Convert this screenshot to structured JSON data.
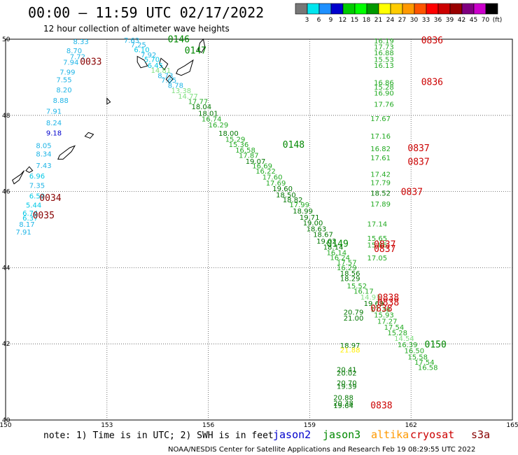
{
  "title": "00:00 – 11:59 UTC 02/17/2022",
  "subtitle": "12 hour collection of altimeter wave heights",
  "note": "note:  1) Time is in UTC;  2) SWH is in feet",
  "footer": "NOAA/NESDIS Center for Satellite Applications and Research   Feb 19 08:29:55 UTC 2022",
  "satellites": [
    {
      "name": "jason2",
      "color": "#0000cc"
    },
    {
      "name": "jason3",
      "color": "#008800"
    },
    {
      "name": "altika",
      "color": "#ff9900"
    },
    {
      "name": "cryosat",
      "color": "#cc0000"
    },
    {
      "name": "s3a",
      "color": "#880000"
    }
  ],
  "colorbar": {
    "labels": [
      "3",
      "6",
      "9",
      "12",
      "15",
      "18",
      "21",
      "24",
      "27",
      "30",
      "33",
      "36",
      "39",
      "42",
      "45",
      "70",
      "(ft)"
    ],
    "colors": [
      "#777777",
      "#00e5ee",
      "#1e90ff",
      "#0000cd",
      "#00cc00",
      "#00ff00",
      "#009900",
      "#ffff00",
      "#ffcc00",
      "#ff9900",
      "#ff5500",
      "#ff0000",
      "#cc0000",
      "#990000",
      "#800080",
      "#cc00cc",
      "#000000"
    ]
  },
  "chart_data": {
    "type": "scatter",
    "title": "00:00 – 11:59 UTC 02/17/2022",
    "xlim": [
      150,
      165
    ],
    "ylim": [
      40,
      50
    ],
    "x_ticks": [
      "150",
      "153",
      "156",
      "159",
      "162",
      "165"
    ],
    "y_ticks": [
      "50",
      "48",
      "46",
      "44",
      "42",
      "40"
    ],
    "grid": true,
    "coast": [
      [
        [
          153.9,
          49.55
        ],
        [
          154.1,
          49.45
        ],
        [
          154.2,
          49.3
        ],
        [
          154.0,
          49.25
        ],
        [
          153.9,
          49.4
        ]
      ],
      [
        [
          154.6,
          49.5
        ],
        [
          154.8,
          49.35
        ],
        [
          154.7,
          49.2
        ],
        [
          154.55,
          49.35
        ]
      ],
      [
        [
          155.1,
          49.2
        ],
        [
          155.3,
          49.3
        ],
        [
          155.55,
          49.45
        ],
        [
          155.45,
          49.15
        ],
        [
          155.2,
          49.05
        ],
        [
          155.05,
          49.1
        ]
      ],
      [
        [
          155.85,
          50.0
        ],
        [
          155.9,
          49.8
        ],
        [
          155.8,
          49.65
        ],
        [
          155.7,
          49.7
        ],
        [
          155.75,
          49.9
        ]
      ],
      [
        [
          154.85,
          49.05
        ],
        [
          154.95,
          48.95
        ],
        [
          154.85,
          48.85
        ],
        [
          154.75,
          48.95
        ]
      ],
      [
        [
          153.0,
          48.45
        ],
        [
          153.1,
          48.35
        ],
        [
          153.0,
          48.3
        ]
      ],
      [
        [
          152.45,
          47.55
        ],
        [
          152.6,
          47.5
        ],
        [
          152.5,
          47.4
        ],
        [
          152.35,
          47.45
        ]
      ],
      [
        [
          151.6,
          46.95
        ],
        [
          151.9,
          47.15
        ],
        [
          152.05,
          47.2
        ],
        [
          151.95,
          47.05
        ],
        [
          151.7,
          46.85
        ],
        [
          151.55,
          46.85
        ]
      ],
      [
        [
          150.7,
          46.65
        ],
        [
          150.8,
          46.55
        ],
        [
          150.7,
          46.5
        ],
        [
          150.6,
          46.55
        ]
      ],
      [
        [
          150.2,
          46.3
        ],
        [
          150.45,
          46.45
        ],
        [
          150.55,
          46.55
        ],
        [
          150.4,
          46.3
        ],
        [
          150.25,
          46.2
        ]
      ]
    ],
    "track_labels": [
      {
        "label": "0146",
        "lon": 154.8,
        "lat": 49.92,
        "color": "#008800"
      },
      {
        "label": "0147",
        "lon": 155.3,
        "lat": 49.62,
        "color": "#008800"
      },
      {
        "label": "0148",
        "lon": 158.2,
        "lat": 47.15,
        "color": "#008800"
      },
      {
        "label": "0149",
        "lon": 159.5,
        "lat": 44.55,
        "color": "#008800"
      },
      {
        "label": "0150",
        "lon": 162.4,
        "lat": 41.9,
        "color": "#008800"
      },
      {
        "label": "0033",
        "lon": 152.2,
        "lat": 49.33,
        "color": "#880000"
      },
      {
        "label": "0034",
        "lon": 151.0,
        "lat": 45.75,
        "color": "#880000"
      },
      {
        "label": "0035",
        "lon": 150.8,
        "lat": 45.29,
        "color": "#880000"
      },
      {
        "label": "0836",
        "lon": 162.3,
        "lat": 49.89,
        "color": "#cc0000"
      },
      {
        "label": "0836",
        "lon": 162.3,
        "lat": 48.8,
        "color": "#cc0000"
      },
      {
        "label": "0837",
        "lon": 161.9,
        "lat": 47.06,
        "color": "#cc0000"
      },
      {
        "label": "0837",
        "lon": 161.9,
        "lat": 46.7,
        "color": "#cc0000"
      },
      {
        "label": "0837",
        "lon": 161.7,
        "lat": 45.91,
        "color": "#cc0000"
      },
      {
        "label": "0837",
        "lon": 160.9,
        "lat": 44.53,
        "color": "#cc0000"
      },
      {
        "label": "0837",
        "lon": 160.9,
        "lat": 44.41,
        "color": "#cc0000"
      },
      {
        "label": "0838",
        "lon": 161.0,
        "lat": 43.13,
        "color": "#cc0000"
      },
      {
        "label": "0838",
        "lon": 161.0,
        "lat": 43.01,
        "color": "#cc0000"
      },
      {
        "label": "0838",
        "lon": 160.8,
        "lat": 42.85,
        "color": "#cc0000"
      },
      {
        "label": "0838",
        "lon": 160.8,
        "lat": 40.3,
        "color": "#cc0000"
      }
    ],
    "points": [
      {
        "lon": 153.5,
        "lat": 49.91,
        "v": "7.63",
        "c": "#1eb4e6"
      },
      {
        "lon": 153.7,
        "lat": 49.79,
        "v": "7.25",
        "c": "#1eb4e6"
      },
      {
        "lon": 153.8,
        "lat": 49.66,
        "v": "6.10",
        "c": "#00c8e6"
      },
      {
        "lon": 154.0,
        "lat": 49.52,
        "v": "7.92",
        "c": "#1eb4e6"
      },
      {
        "lon": 154.1,
        "lat": 49.4,
        "v": "5.70",
        "c": "#00c8e6"
      },
      {
        "lon": 154.2,
        "lat": 49.25,
        "v": "6.45",
        "c": "#00c8e6"
      },
      {
        "lon": 154.3,
        "lat": 49.12,
        "v": "14.81",
        "c": "#80e080"
      },
      {
        "lon": 154.5,
        "lat": 48.98,
        "v": "8.73",
        "c": "#1eb4e6"
      },
      {
        "lon": 154.6,
        "lat": 48.86,
        "v": "7.65",
        "c": "#1eb4e6"
      },
      {
        "lon": 154.8,
        "lat": 48.72,
        "v": "8.78",
        "c": "#1eb4e6"
      },
      {
        "lon": 154.9,
        "lat": 48.58,
        "v": "13.38",
        "c": "#80e080"
      },
      {
        "lon": 155.1,
        "lat": 48.44,
        "v": "14.77",
        "c": "#80e080"
      },
      {
        "lon": 155.4,
        "lat": 48.3,
        "v": "17.77",
        "c": "#22aa22"
      },
      {
        "lon": 155.5,
        "lat": 48.16,
        "v": "18.04",
        "c": "#007700"
      },
      {
        "lon": 155.7,
        "lat": 47.99,
        "v": "18.01",
        "c": "#007700"
      },
      {
        "lon": 155.8,
        "lat": 47.84,
        "v": "16.74",
        "c": "#22aa22"
      },
      {
        "lon": 156.0,
        "lat": 47.68,
        "v": "16.29",
        "c": "#22aa22"
      },
      {
        "lon": 156.3,
        "lat": 47.46,
        "v": "18.00",
        "c": "#007700"
      },
      {
        "lon": 156.5,
        "lat": 47.31,
        "v": "15.29",
        "c": "#22aa22"
      },
      {
        "lon": 156.6,
        "lat": 47.17,
        "v": "15.36",
        "c": "#22aa22"
      },
      {
        "lon": 156.8,
        "lat": 47.02,
        "v": "16.58",
        "c": "#22aa22"
      },
      {
        "lon": 156.9,
        "lat": 46.88,
        "v": "17.87",
        "c": "#22aa22"
      },
      {
        "lon": 157.1,
        "lat": 46.73,
        "v": "19.07",
        "c": "#007700"
      },
      {
        "lon": 157.3,
        "lat": 46.61,
        "v": "16.69",
        "c": "#22aa22"
      },
      {
        "lon": 157.4,
        "lat": 46.47,
        "v": "16.22",
        "c": "#22aa22"
      },
      {
        "lon": 157.6,
        "lat": 46.31,
        "v": "17.60",
        "c": "#22aa22"
      },
      {
        "lon": 157.7,
        "lat": 46.16,
        "v": "17.69",
        "c": "#22aa22"
      },
      {
        "lon": 157.9,
        "lat": 46.01,
        "v": "19.60",
        "c": "#007700"
      },
      {
        "lon": 158.0,
        "lat": 45.85,
        "v": "18.50",
        "c": "#007700"
      },
      {
        "lon": 158.2,
        "lat": 45.72,
        "v": "18.82",
        "c": "#007700"
      },
      {
        "lon": 158.4,
        "lat": 45.59,
        "v": "17.99",
        "c": "#22aa22"
      },
      {
        "lon": 158.5,
        "lat": 45.42,
        "v": "18.99",
        "c": "#007700"
      },
      {
        "lon": 158.7,
        "lat": 45.26,
        "v": "19.71",
        "c": "#007700"
      },
      {
        "lon": 158.8,
        "lat": 45.11,
        "v": "19.00",
        "c": "#007700"
      },
      {
        "lon": 158.9,
        "lat": 44.95,
        "v": "18.63",
        "c": "#007700"
      },
      {
        "lon": 159.1,
        "lat": 44.81,
        "v": "18.67",
        "c": "#007700"
      },
      {
        "lon": 159.2,
        "lat": 44.63,
        "v": "19.02",
        "c": "#007700"
      },
      {
        "lon": 159.4,
        "lat": 44.48,
        "v": "18.14",
        "c": "#007700"
      },
      {
        "lon": 159.5,
        "lat": 44.33,
        "v": "16.14",
        "c": "#22aa22"
      },
      {
        "lon": 159.6,
        "lat": 44.2,
        "v": "16.24",
        "c": "#22aa22"
      },
      {
        "lon": 159.8,
        "lat": 44.07,
        "v": "17.57",
        "c": "#22aa22"
      },
      {
        "lon": 159.8,
        "lat": 43.93,
        "v": "16.29",
        "c": "#22aa22"
      },
      {
        "lon": 159.9,
        "lat": 43.79,
        "v": "18.56",
        "c": "#007700"
      },
      {
        "lon": 159.9,
        "lat": 43.65,
        "v": "18.29",
        "c": "#007700"
      },
      {
        "lon": 160.1,
        "lat": 43.46,
        "v": "15.52",
        "c": "#22aa22"
      },
      {
        "lon": 160.3,
        "lat": 43.32,
        "v": "16.17",
        "c": "#22aa22"
      },
      {
        "lon": 160.5,
        "lat": 43.16,
        "v": "14.93",
        "c": "#80e080"
      },
      {
        "lon": 160.6,
        "lat": 43.0,
        "v": "19.69",
        "c": "#007700"
      },
      {
        "lon": 160.8,
        "lat": 42.84,
        "v": "17.38",
        "c": "#22aa22"
      },
      {
        "lon": 160.9,
        "lat": 42.69,
        "v": "15.93",
        "c": "#22aa22"
      },
      {
        "lon": 161.0,
        "lat": 42.53,
        "v": "17.27",
        "c": "#22aa22"
      },
      {
        "lon": 161.2,
        "lat": 42.37,
        "v": "17.54",
        "c": "#22aa22"
      },
      {
        "lon": 161.3,
        "lat": 42.22,
        "v": "15.28",
        "c": "#22aa22"
      },
      {
        "lon": 161.5,
        "lat": 42.08,
        "v": "14.54",
        "c": "#80e080"
      },
      {
        "lon": 161.6,
        "lat": 41.91,
        "v": "16.39",
        "c": "#22aa22"
      },
      {
        "lon": 161.8,
        "lat": 41.76,
        "v": "16.50",
        "c": "#22aa22"
      },
      {
        "lon": 161.9,
        "lat": 41.59,
        "v": "15.58",
        "c": "#22aa22"
      },
      {
        "lon": 162.1,
        "lat": 41.45,
        "v": "17.54",
        "c": "#22aa22"
      },
      {
        "lon": 162.2,
        "lat": 41.31,
        "v": "16.58",
        "c": "#22aa22"
      },
      {
        "lon": 160.9,
        "lat": 49.89,
        "v": "16.19",
        "c": "#22aa22"
      },
      {
        "lon": 160.9,
        "lat": 49.73,
        "v": "17.73",
        "c": "#22aa22"
      },
      {
        "lon": 160.9,
        "lat": 49.58,
        "v": "16.88",
        "c": "#22aa22"
      },
      {
        "lon": 160.9,
        "lat": 49.4,
        "v": "15.53",
        "c": "#22aa22"
      },
      {
        "lon": 160.9,
        "lat": 49.25,
        "v": "16.13",
        "c": "#22aa22"
      },
      {
        "lon": 160.9,
        "lat": 48.8,
        "v": "16.86",
        "c": "#22aa22"
      },
      {
        "lon": 160.9,
        "lat": 48.68,
        "v": "15.28",
        "c": "#22aa22"
      },
      {
        "lon": 160.9,
        "lat": 48.52,
        "v": "16.90",
        "c": "#22aa22"
      },
      {
        "lon": 160.9,
        "lat": 48.23,
        "v": "17.76",
        "c": "#22aa22"
      },
      {
        "lon": 160.8,
        "lat": 47.85,
        "v": "17.67",
        "c": "#22aa22"
      },
      {
        "lon": 160.8,
        "lat": 47.39,
        "v": "17.16",
        "c": "#22aa22"
      },
      {
        "lon": 160.8,
        "lat": 47.06,
        "v": "16.82",
        "c": "#22aa22"
      },
      {
        "lon": 160.8,
        "lat": 46.82,
        "v": "17.61",
        "c": "#22aa22"
      },
      {
        "lon": 160.8,
        "lat": 46.39,
        "v": "17.42",
        "c": "#22aa22"
      },
      {
        "lon": 160.8,
        "lat": 46.17,
        "v": "17.79",
        "c": "#22aa22"
      },
      {
        "lon": 160.8,
        "lat": 45.89,
        "v": "18.52",
        "c": "#007700"
      },
      {
        "lon": 160.8,
        "lat": 45.61,
        "v": "17.89",
        "c": "#22aa22"
      },
      {
        "lon": 160.7,
        "lat": 45.08,
        "v": "17.14",
        "c": "#22aa22"
      },
      {
        "lon": 160.7,
        "lat": 44.71,
        "v": "15.65",
        "c": "#22aa22"
      },
      {
        "lon": 160.7,
        "lat": 44.53,
        "v": "15.86",
        "c": "#22aa22"
      },
      {
        "lon": 160.7,
        "lat": 44.19,
        "v": "17.05",
        "c": "#22aa22"
      },
      {
        "lon": 160.0,
        "lat": 42.77,
        "v": "20.79",
        "c": "#007700"
      },
      {
        "lon": 160.0,
        "lat": 42.61,
        "v": "21.00",
        "c": "#007700"
      },
      {
        "lon": 159.9,
        "lat": 41.89,
        "v": "18.97",
        "c": "#007700"
      },
      {
        "lon": 159.9,
        "lat": 41.77,
        "v": "21.88",
        "c": "#ffee00"
      },
      {
        "lon": 159.8,
        "lat": 41.26,
        "v": "20.41",
        "c": "#007700"
      },
      {
        "lon": 159.8,
        "lat": 41.17,
        "v": "20.02",
        "c": "#007700"
      },
      {
        "lon": 159.8,
        "lat": 40.91,
        "v": "20.70",
        "c": "#007700"
      },
      {
        "lon": 159.8,
        "lat": 40.82,
        "v": "19.39",
        "c": "#007700"
      },
      {
        "lon": 159.7,
        "lat": 40.52,
        "v": "20.88",
        "c": "#007700"
      },
      {
        "lon": 159.7,
        "lat": 40.38,
        "v": "20.38",
        "c": "#007700"
      },
      {
        "lon": 159.7,
        "lat": 40.31,
        "v": "19.64",
        "c": "#007700"
      },
      {
        "lon": 152.0,
        "lat": 49.87,
        "v": "8.33",
        "c": "#1eb4e6"
      },
      {
        "lon": 151.8,
        "lat": 49.63,
        "v": "8.70",
        "c": "#1eb4e6"
      },
      {
        "lon": 151.9,
        "lat": 49.48,
        "v": "7.72",
        "c": "#1eb4e6"
      },
      {
        "lon": 151.7,
        "lat": 49.33,
        "v": "7.94",
        "c": "#1eb4e6"
      },
      {
        "lon": 151.6,
        "lat": 49.07,
        "v": "7.99",
        "c": "#1eb4e6"
      },
      {
        "lon": 151.5,
        "lat": 48.87,
        "v": "7.55",
        "c": "#1eb4e6"
      },
      {
        "lon": 151.5,
        "lat": 48.6,
        "v": "8.20",
        "c": "#1eb4e6"
      },
      {
        "lon": 151.4,
        "lat": 48.33,
        "v": "8.88",
        "c": "#1eb4e6"
      },
      {
        "lon": 151.2,
        "lat": 48.04,
        "v": "7.91",
        "c": "#1eb4e6"
      },
      {
        "lon": 151.2,
        "lat": 47.74,
        "v": "8.24",
        "c": "#1eb4e6"
      },
      {
        "lon": 151.2,
        "lat": 47.47,
        "v": "9.18",
        "c": "#0000cd"
      },
      {
        "lon": 150.9,
        "lat": 47.14,
        "v": "8.05",
        "c": "#1eb4e6"
      },
      {
        "lon": 150.9,
        "lat": 46.92,
        "v": "8.34",
        "c": "#1eb4e6"
      },
      {
        "lon": 150.9,
        "lat": 46.62,
        "v": "7.43",
        "c": "#1eb4e6"
      },
      {
        "lon": 150.7,
        "lat": 46.34,
        "v": "6.96",
        "c": "#00c8e6"
      },
      {
        "lon": 150.7,
        "lat": 46.09,
        "v": "7.35",
        "c": "#1eb4e6"
      },
      {
        "lon": 150.7,
        "lat": 45.82,
        "v": "6.59",
        "c": "#00c8e6"
      },
      {
        "lon": 150.6,
        "lat": 45.58,
        "v": "5.44",
        "c": "#00c8e6"
      },
      {
        "lon": 150.5,
        "lat": 45.37,
        "v": "6.74",
        "c": "#00c8e6"
      },
      {
        "lon": 150.5,
        "lat": 45.24,
        "v": "6.37",
        "c": "#00c8e6"
      },
      {
        "lon": 150.4,
        "lat": 45.07,
        "v": "8.17",
        "c": "#1eb4e6"
      },
      {
        "lon": 150.3,
        "lat": 44.87,
        "v": "7.91",
        "c": "#1eb4e6"
      }
    ]
  }
}
